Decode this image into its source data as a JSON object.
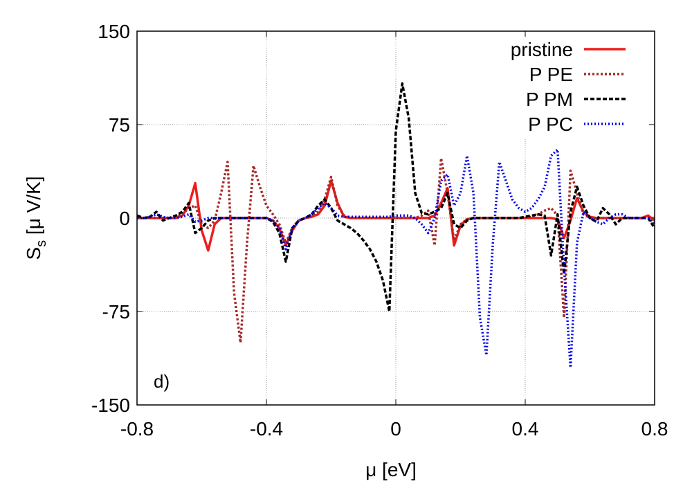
{
  "chart_data": {
    "type": "line",
    "xlabel": "μ [eV]",
    "ylabel": [
      "S",
      "s",
      " [μ V/K]"
    ],
    "annotation": "d)",
    "xlim": [
      -0.8,
      0.8
    ],
    "ylim": [
      -150,
      150
    ],
    "xticks": [
      -0.8,
      -0.4,
      0,
      0.4,
      0.8
    ],
    "yticks": [
      -150,
      -75,
      0,
      75,
      150
    ],
    "grid": true,
    "legend": "top-right",
    "x": [
      -0.8,
      -0.78,
      -0.76,
      -0.74,
      -0.72,
      -0.7,
      -0.68,
      -0.66,
      -0.64,
      -0.62,
      -0.6,
      -0.58,
      -0.56,
      -0.54,
      -0.52,
      -0.5,
      -0.48,
      -0.46,
      -0.44,
      -0.42,
      -0.4,
      -0.38,
      -0.36,
      -0.34,
      -0.32,
      -0.3,
      -0.28,
      -0.26,
      -0.24,
      -0.22,
      -0.2,
      -0.18,
      -0.16,
      -0.14,
      -0.12,
      -0.1,
      -0.08,
      -0.06,
      -0.04,
      -0.02,
      0,
      0.02,
      0.04,
      0.06,
      0.08,
      0.1,
      0.12,
      0.14,
      0.16,
      0.18,
      0.2,
      0.22,
      0.24,
      0.26,
      0.28,
      0.3,
      0.32,
      0.34,
      0.36,
      0.38,
      0.4,
      0.42,
      0.44,
      0.46,
      0.48,
      0.5,
      0.52,
      0.54,
      0.56,
      0.58,
      0.6,
      0.62,
      0.64,
      0.66,
      0.68,
      0.7,
      0.72,
      0.74,
      0.76,
      0.78,
      0.8
    ],
    "series": [
      {
        "name": "pristine",
        "color": "#ee1c1c",
        "dash": "none",
        "values": [
          0,
          0,
          0,
          0,
          0,
          0,
          0,
          2,
          10,
          28,
          -10,
          -26,
          -5,
          0,
          0,
          0,
          0,
          0,
          0,
          0,
          0,
          -2,
          -8,
          -22,
          -10,
          -2,
          0,
          1,
          3,
          10,
          30,
          12,
          1,
          0,
          0,
          0,
          0,
          0,
          0,
          0,
          0,
          0,
          0,
          0,
          0,
          0,
          2,
          12,
          24,
          -22,
          -6,
          -1,
          0,
          0,
          0,
          0,
          0,
          0,
          0,
          0,
          0,
          0,
          0,
          0,
          0,
          -1,
          -16,
          -2,
          16,
          5,
          1,
          0,
          0,
          0,
          0,
          0,
          0,
          0,
          0,
          2,
          -2
        ]
      },
      {
        "name": "P PE",
        "color": "#a52a2a",
        "dash": "3,3",
        "values": [
          0,
          0,
          0,
          0,
          0,
          0,
          1,
          3,
          8,
          10,
          -5,
          -8,
          -2,
          20,
          45,
          -60,
          -100,
          -20,
          42,
          25,
          10,
          3,
          -5,
          -20,
          -8,
          -2,
          0,
          2,
          5,
          15,
          33,
          10,
          2,
          0,
          0,
          0,
          0,
          0,
          0,
          0,
          0,
          0,
          0,
          0,
          2,
          6,
          -22,
          48,
          20,
          -18,
          -5,
          -1,
          0,
          0,
          0,
          0,
          0,
          0,
          0,
          0,
          0,
          1,
          3,
          6,
          8,
          2,
          -80,
          38,
          20,
          3,
          0,
          0,
          0,
          0,
          0,
          0,
          0,
          0,
          0,
          0,
          0
        ]
      },
      {
        "name": "P PM",
        "color": "#000000",
        "dash": "6,3",
        "values": [
          2,
          0,
          1,
          5,
          -2,
          0,
          2,
          5,
          12,
          -12,
          -8,
          -2,
          0,
          0,
          0,
          0,
          0,
          0,
          0,
          0,
          0,
          -3,
          -12,
          -35,
          -8,
          -2,
          0,
          3,
          10,
          15,
          8,
          -2,
          -5,
          -8,
          -12,
          -18,
          -25,
          -35,
          -50,
          -75,
          70,
          108,
          80,
          20,
          4,
          3,
          5,
          8,
          20,
          -5,
          -8,
          -2,
          0,
          0,
          0,
          0,
          0,
          0,
          0,
          0,
          1,
          2,
          3,
          2,
          -30,
          3,
          -45,
          5,
          25,
          10,
          0,
          -3,
          8,
          3,
          -5,
          0,
          0,
          0,
          0,
          0,
          -8
        ]
      },
      {
        "name": "P PC",
        "color": "#0000ee",
        "dash": "2,3",
        "values": [
          0,
          0,
          1,
          3,
          1,
          0,
          0,
          1,
          3,
          -3,
          -2,
          0,
          0,
          0,
          0,
          0,
          0,
          0,
          0,
          0,
          0,
          -2,
          -8,
          -25,
          -8,
          -2,
          0,
          3,
          8,
          12,
          8,
          2,
          1,
          1,
          1,
          1,
          1,
          1,
          1,
          1,
          2,
          2,
          2,
          0,
          -5,
          -12,
          0,
          30,
          35,
          10,
          20,
          50,
          20,
          -80,
          -110,
          -20,
          45,
          30,
          15,
          8,
          5,
          8,
          15,
          25,
          50,
          55,
          -40,
          -120,
          -20,
          5,
          0,
          -3,
          -5,
          0,
          3,
          3,
          0,
          0,
          0,
          0,
          -5
        ]
      }
    ]
  }
}
